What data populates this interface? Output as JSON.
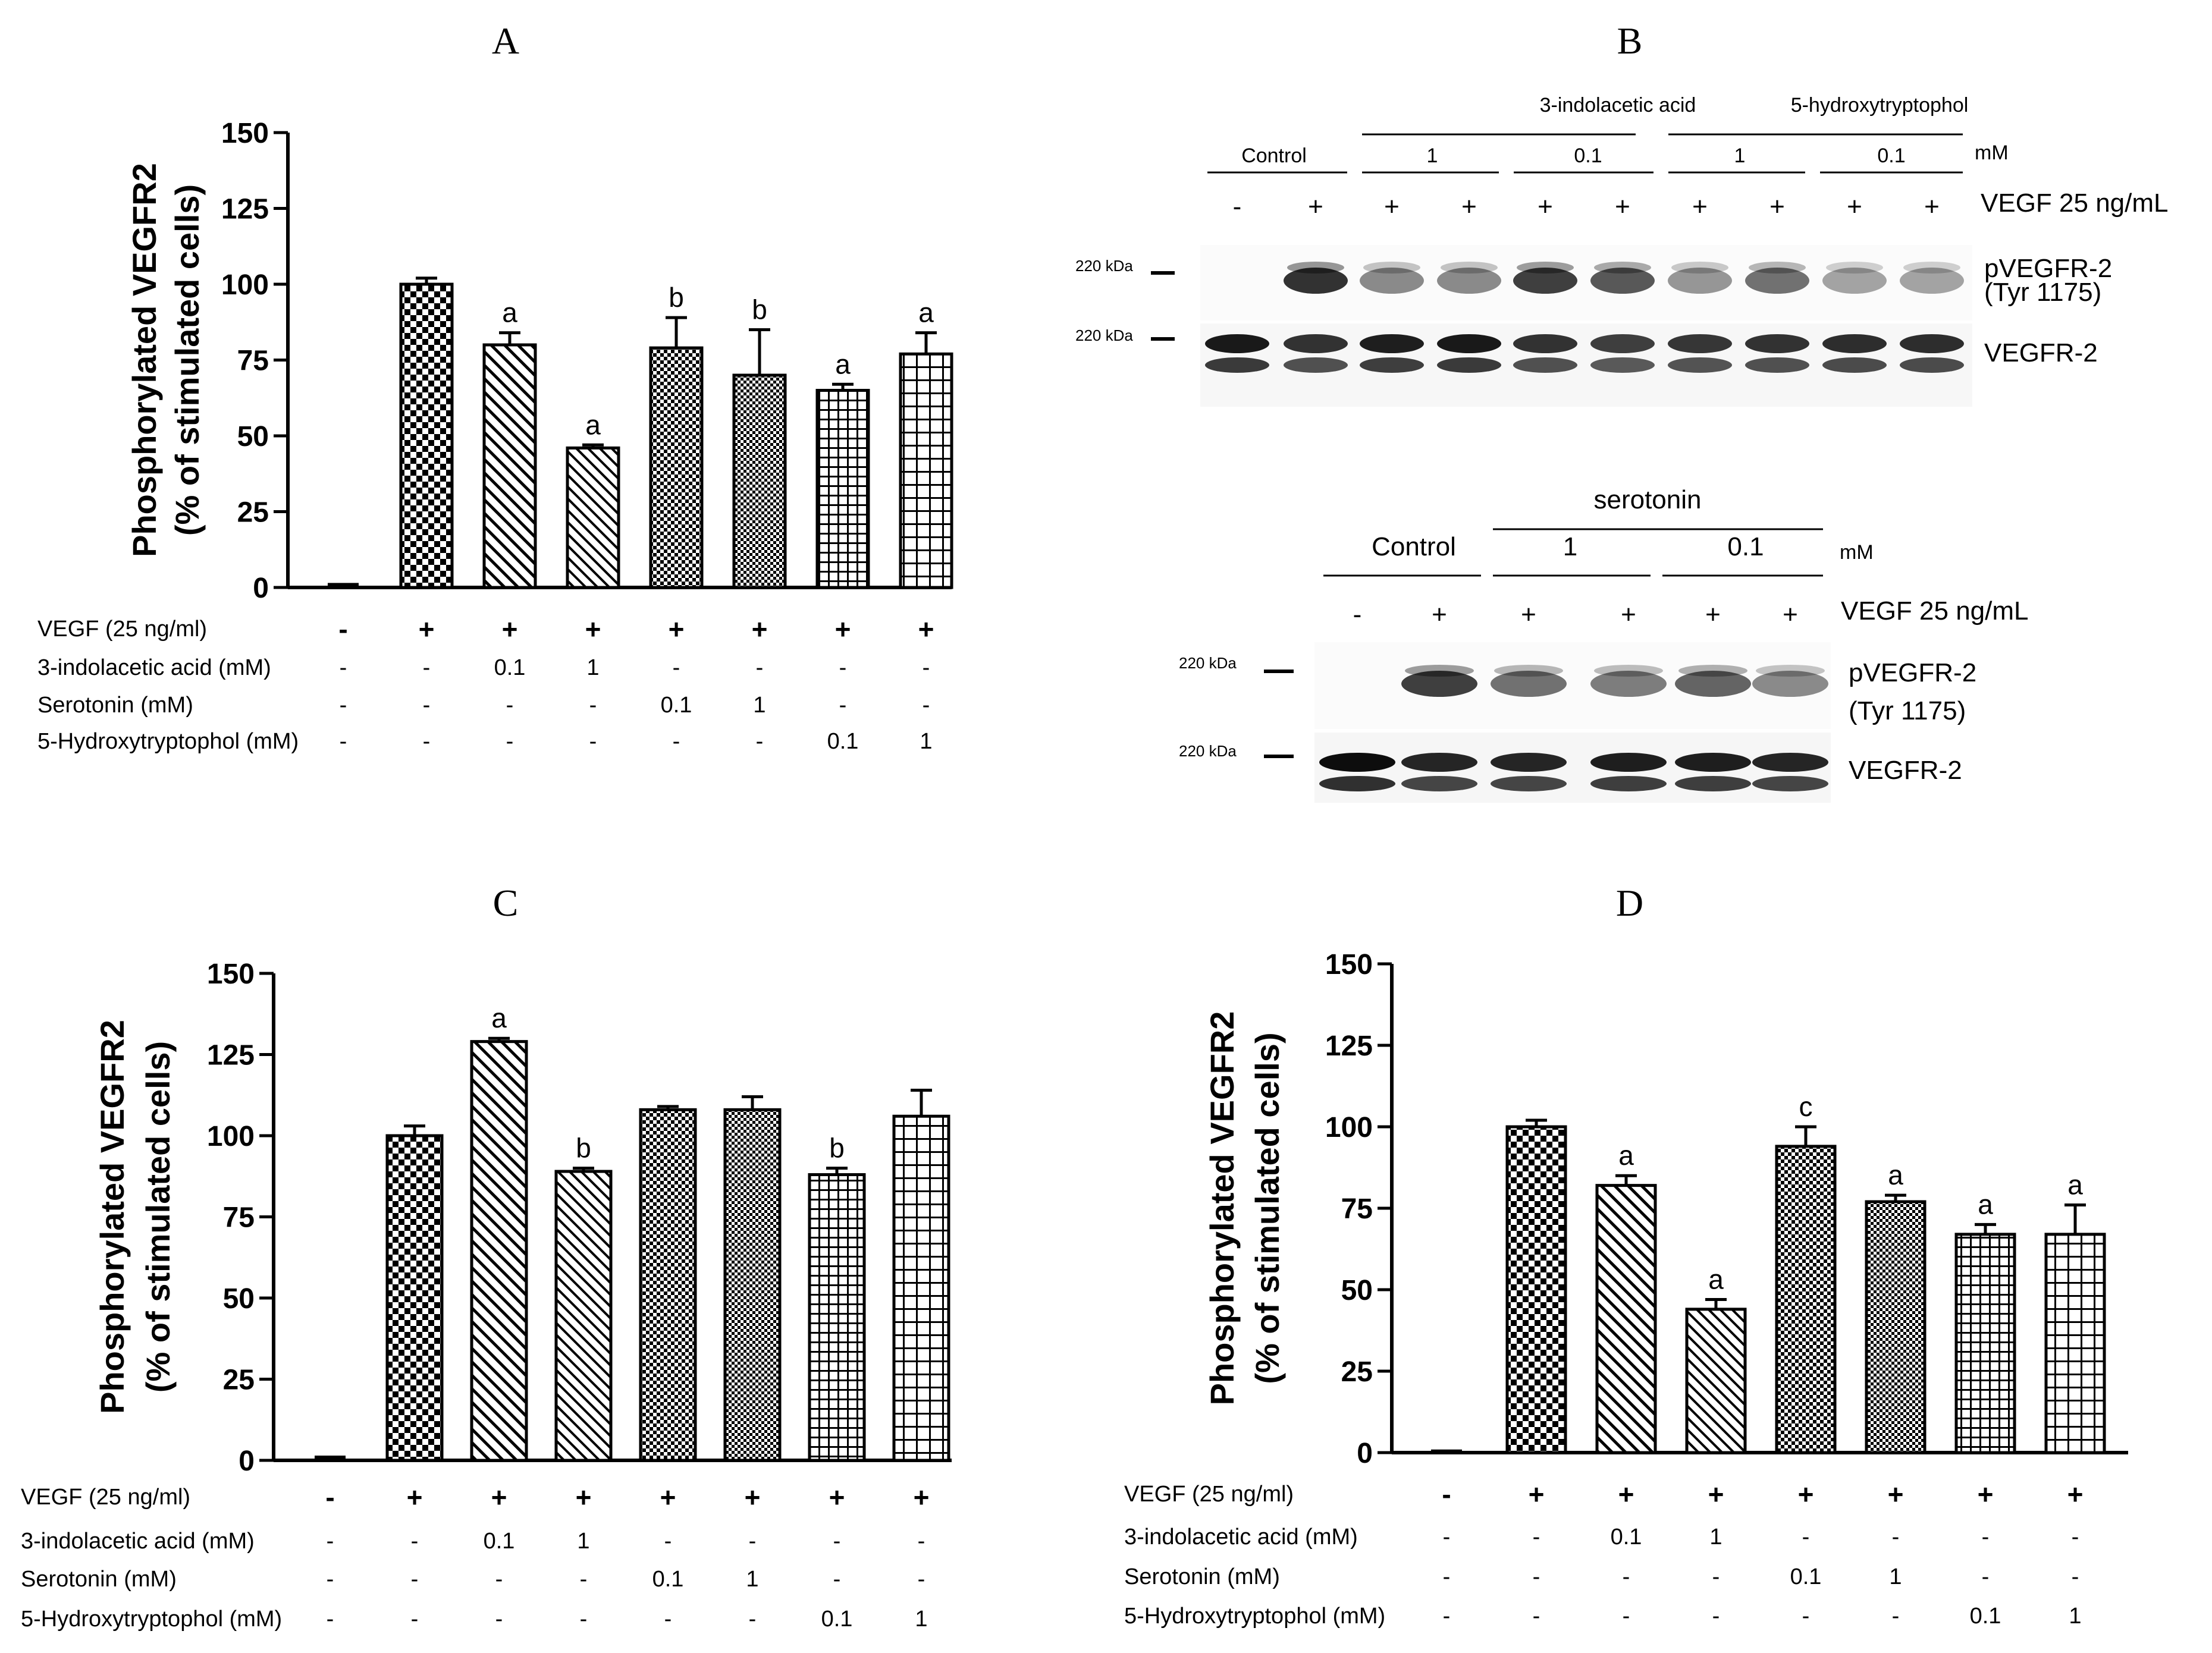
{
  "chart_data": [
    {
      "panel": "A",
      "type": "bar",
      "ylabel_line1": "Phosphorylated  VEGFR2",
      "ylabel_line2": "(% of stimulated cells)",
      "ylim": [
        0,
        150
      ],
      "yticks": [
        "0",
        "25",
        "50",
        "75",
        "100",
        "125",
        "150"
      ],
      "values": [
        1,
        100,
        80,
        46,
        79,
        70,
        65,
        77
      ],
      "errors": [
        0.5,
        2,
        4,
        1,
        10,
        15,
        2,
        7
      ],
      "patterns": [
        "none",
        "checkA",
        "diagA",
        "diagB",
        "checkB",
        "checkC",
        "gridA",
        "gridB"
      ],
      "letters": [
        "",
        "",
        "a",
        "a",
        "b",
        "b",
        "a",
        "a"
      ],
      "conditions": [
        {
          "label": "VEGF (25 ng/ml)",
          "values": [
            "-",
            "+",
            "+",
            "+",
            "+",
            "+",
            "+",
            "+"
          ]
        },
        {
          "label": "3-indolacetic acid (mM)",
          "values": [
            "-",
            "-",
            "0.1",
            "1",
            "-",
            "-",
            "-",
            "-"
          ]
        },
        {
          "label": "Serotonin (mM)",
          "values": [
            "-",
            "-",
            "-",
            "-",
            "0.1",
            "1",
            "-",
            "-"
          ]
        },
        {
          "label": "5-Hydroxytryptophol (mM)",
          "values": [
            "-",
            "-",
            "-",
            "-",
            "-",
            "-",
            "0.1",
            "1"
          ]
        }
      ]
    },
    {
      "panel": "C",
      "type": "bar",
      "ylabel_line1": "Phosphorylated  VEGFR2",
      "ylabel_line2": "(% of stimulated cells)",
      "ylim": [
        0,
        150
      ],
      "yticks": [
        "0",
        "25",
        "50",
        "75",
        "100",
        "125",
        "150"
      ],
      "values": [
        1,
        100,
        129,
        89,
        108,
        108,
        88,
        106
      ],
      "errors": [
        1,
        3,
        1,
        1,
        1,
        4,
        2,
        8
      ],
      "patterns": [
        "none",
        "checkA",
        "diagA",
        "diagB",
        "checkB",
        "checkC",
        "gridA",
        "gridB"
      ],
      "letters": [
        "",
        "",
        "a",
        "b",
        "",
        "",
        "b",
        ""
      ],
      "conditions": [
        {
          "label": "VEGF (25 ng/ml)",
          "values": [
            "-",
            "+",
            "+",
            "+",
            "+",
            "+",
            "+",
            "+"
          ]
        },
        {
          "label": "3-indolacetic acid (mM)",
          "values": [
            "-",
            "-",
            "0.1",
            "1",
            "-",
            "-",
            "-",
            "-"
          ]
        },
        {
          "label": "Serotonin (mM)",
          "values": [
            "-",
            "-",
            "-",
            "-",
            "0.1",
            "1",
            "-",
            "-"
          ]
        },
        {
          "label": "5-Hydroxytryptophol (mM)",
          "values": [
            "-",
            "-",
            "-",
            "-",
            "-",
            "-",
            "0.1",
            "1"
          ]
        }
      ]
    },
    {
      "panel": "D",
      "type": "bar",
      "ylabel_line1": "Phosphorylated  VEGFR2",
      "ylabel_line2": "(% of stimulated cells)",
      "ylim": [
        0,
        150
      ],
      "yticks": [
        "0",
        "25",
        "50",
        "75",
        "100",
        "125",
        "150"
      ],
      "values": [
        0.5,
        100,
        82,
        44,
        94,
        77,
        67,
        67
      ],
      "errors": [
        0.5,
        2,
        3,
        3,
        6,
        2,
        3,
        9
      ],
      "patterns": [
        "none",
        "checkA",
        "diagA",
        "diagB",
        "checkB",
        "checkC",
        "gridA",
        "gridB"
      ],
      "letters": [
        "",
        "",
        "a",
        "a",
        "c",
        "a",
        "a",
        "a"
      ],
      "conditions": [
        {
          "label": "VEGF (25 ng/ml)",
          "values": [
            "-",
            "+",
            "+",
            "+",
            "+",
            "+",
            "+",
            "+"
          ]
        },
        {
          "label": "3-indolacetic acid (mM)",
          "values": [
            "-",
            "-",
            "0.1",
            "1",
            "-",
            "-",
            "-",
            "-"
          ]
        },
        {
          "label": "Serotonin (mM)",
          "values": [
            "-",
            "-",
            "-",
            "-",
            "0.1",
            "1",
            "-",
            "-"
          ]
        },
        {
          "label": "5-Hydroxytryptophol (mM)",
          "values": [
            "-",
            "-",
            "-",
            "-",
            "-",
            "-",
            "0.1",
            "1"
          ]
        }
      ]
    }
  ],
  "blot1": {
    "group_iaa": "3-indolacetic acid",
    "group_htp": "5-hydroxytryptophol",
    "control": "Control",
    "conc": [
      "1",
      "0.1",
      "1",
      "0.1"
    ],
    "unit": "mM",
    "signs": [
      "-",
      "+",
      "+",
      "+",
      "+",
      "+",
      "+",
      "+",
      "+",
      "+"
    ],
    "vegf_label": "VEGF 25 ng/mL",
    "kda_top": "220 kDa",
    "kda_bottom": "220 kDa",
    "row1_a": "pVEGFR-2",
    "row1_b": "(Tyr 1175)",
    "row2": "VEGFR-2"
  },
  "blot2": {
    "group": "serotonin",
    "control": "Control",
    "conc": [
      "1",
      "0.1"
    ],
    "unit": "mM",
    "signs": [
      "-",
      "+",
      "+",
      "+",
      "+",
      "+"
    ],
    "vegf_label": "VEGF 25 ng/mL",
    "kda_top": "220 kDa",
    "kda_bottom": "220 kDa",
    "row1_a": "pVEGFR-2",
    "row1_b": "(Tyr 1175)",
    "row2": "VEGFR-2"
  },
  "titles": {
    "a": "A",
    "b": "B",
    "c": "C",
    "d": "D"
  }
}
